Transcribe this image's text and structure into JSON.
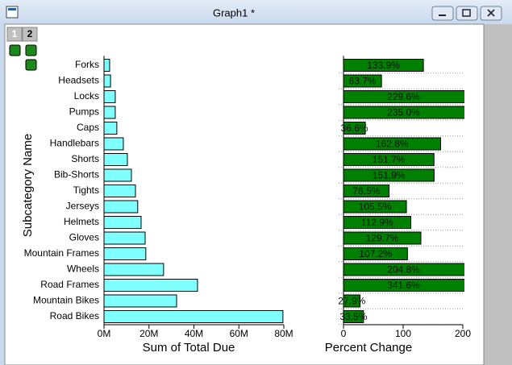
{
  "window": {
    "title": "Graph1 *",
    "tabs": [
      "1",
      "2"
    ]
  },
  "chart_data": [
    {
      "type": "bar",
      "orientation": "horizontal",
      "ylabel": "Subcategory Name",
      "xlabel": "Sum of Total Due",
      "categories": [
        "Forks",
        "Headsets",
        "Locks",
        "Pumps",
        "Caps",
        "Handlebars",
        "Shorts",
        "Bib-Shorts",
        "Tights",
        "Jerseys",
        "Helmets",
        "Gloves",
        "Mountain Frames",
        "Wheels",
        "Road Frames",
        "Mountain Bikes",
        "Road Bikes"
      ],
      "values": [
        2500000,
        2900000,
        5000000,
        5000000,
        5700000,
        8600000,
        10400000,
        12200000,
        14000000,
        15000000,
        16500000,
        18300000,
        18600000,
        26500000,
        41600000,
        32300000,
        79600000
      ],
      "color": "#80ffff",
      "xlim": [
        0,
        80000000
      ],
      "xticks": [
        {
          "value": 0,
          "label": "0M"
        },
        {
          "value": 20000000,
          "label": "20M"
        },
        {
          "value": 40000000,
          "label": "40M"
        },
        {
          "value": 60000000,
          "label": "60M"
        },
        {
          "value": 80000000,
          "label": "80M"
        }
      ]
    },
    {
      "type": "bar",
      "orientation": "horizontal",
      "xlabel": "Percent Change",
      "values": [
        133.9,
        63.7,
        229.6,
        235.0,
        36.6,
        162.8,
        151.7,
        151.9,
        76.5,
        105.5,
        112.9,
        129.7,
        107.2,
        204.8,
        341.6,
        27.9,
        33.5
      ],
      "value_labels": [
        "133.9%",
        "63.7%",
        "229.6%",
        "235.0%",
        "36.6%",
        "162.8%",
        "151.7%",
        "151.9%",
        "76.5%",
        "105.5%",
        "112.9%",
        "129.7%",
        "107.2%",
        "204.8%",
        "341.6%",
        "27.9%",
        "33.5%"
      ],
      "color": "#008000",
      "xlim": [
        0,
        200
      ],
      "xticks": [
        0,
        100,
        200
      ],
      "grid": true
    }
  ]
}
